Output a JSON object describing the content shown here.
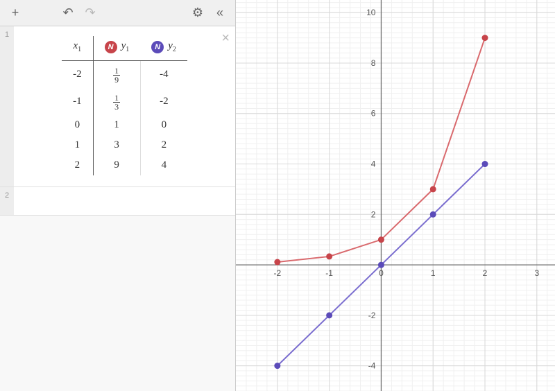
{
  "toolbar": {
    "add_label": "+",
    "undo_label": "↶",
    "redo_label": "↷",
    "settings_label": "⚙",
    "collapse_label": "«"
  },
  "expressions": [
    {
      "index": "1",
      "type": "table"
    },
    {
      "index": "2",
      "type": "empty"
    }
  ],
  "table": {
    "columns": [
      {
        "var": "x",
        "sub": "1",
        "color": null
      },
      {
        "var": "y",
        "sub": "1",
        "color": "#c7444a"
      },
      {
        "var": "y",
        "sub": "2",
        "color": "#5b4bb9"
      }
    ],
    "rows": [
      [
        "-2",
        {
          "frac": [
            "1",
            "9"
          ]
        },
        "-4"
      ],
      [
        "-1",
        {
          "frac": [
            "1",
            "3"
          ]
        },
        "-2"
      ],
      [
        "0",
        "1",
        "0"
      ],
      [
        "1",
        "3",
        "2"
      ],
      [
        "2",
        "9",
        "4"
      ]
    ]
  },
  "chart": {
    "type": "line",
    "background_color": "#ffffff",
    "grid_minor_color": "#f0f0f0",
    "grid_major_color": "#d8d8d8",
    "axis_color": "#666666",
    "tick_fontsize": 12,
    "xlim": [
      -2.8,
      3.35
    ],
    "ylim": [
      -5,
      10.5
    ],
    "xticks": [
      -2,
      -1,
      0,
      1,
      2,
      3
    ],
    "yticks": [
      -4,
      -2,
      2,
      4,
      6,
      8,
      10
    ],
    "minor_step": 0.2,
    "series": [
      {
        "name": "y1",
        "color": "#d9696d",
        "point_color": "#c7444a",
        "line_width": 2,
        "marker_radius": 4.5,
        "points": [
          [
            -2,
            0.1111
          ],
          [
            -1,
            0.3333
          ],
          [
            0,
            1
          ],
          [
            1,
            3
          ],
          [
            2,
            9
          ]
        ]
      },
      {
        "name": "y2",
        "color": "#7a6dcf",
        "point_color": "#5b4bb9",
        "line_width": 2,
        "marker_radius": 4.5,
        "points": [
          [
            -2,
            -4
          ],
          [
            -1,
            -2
          ],
          [
            0,
            0
          ],
          [
            1,
            2
          ],
          [
            2,
            4
          ]
        ]
      }
    ]
  }
}
